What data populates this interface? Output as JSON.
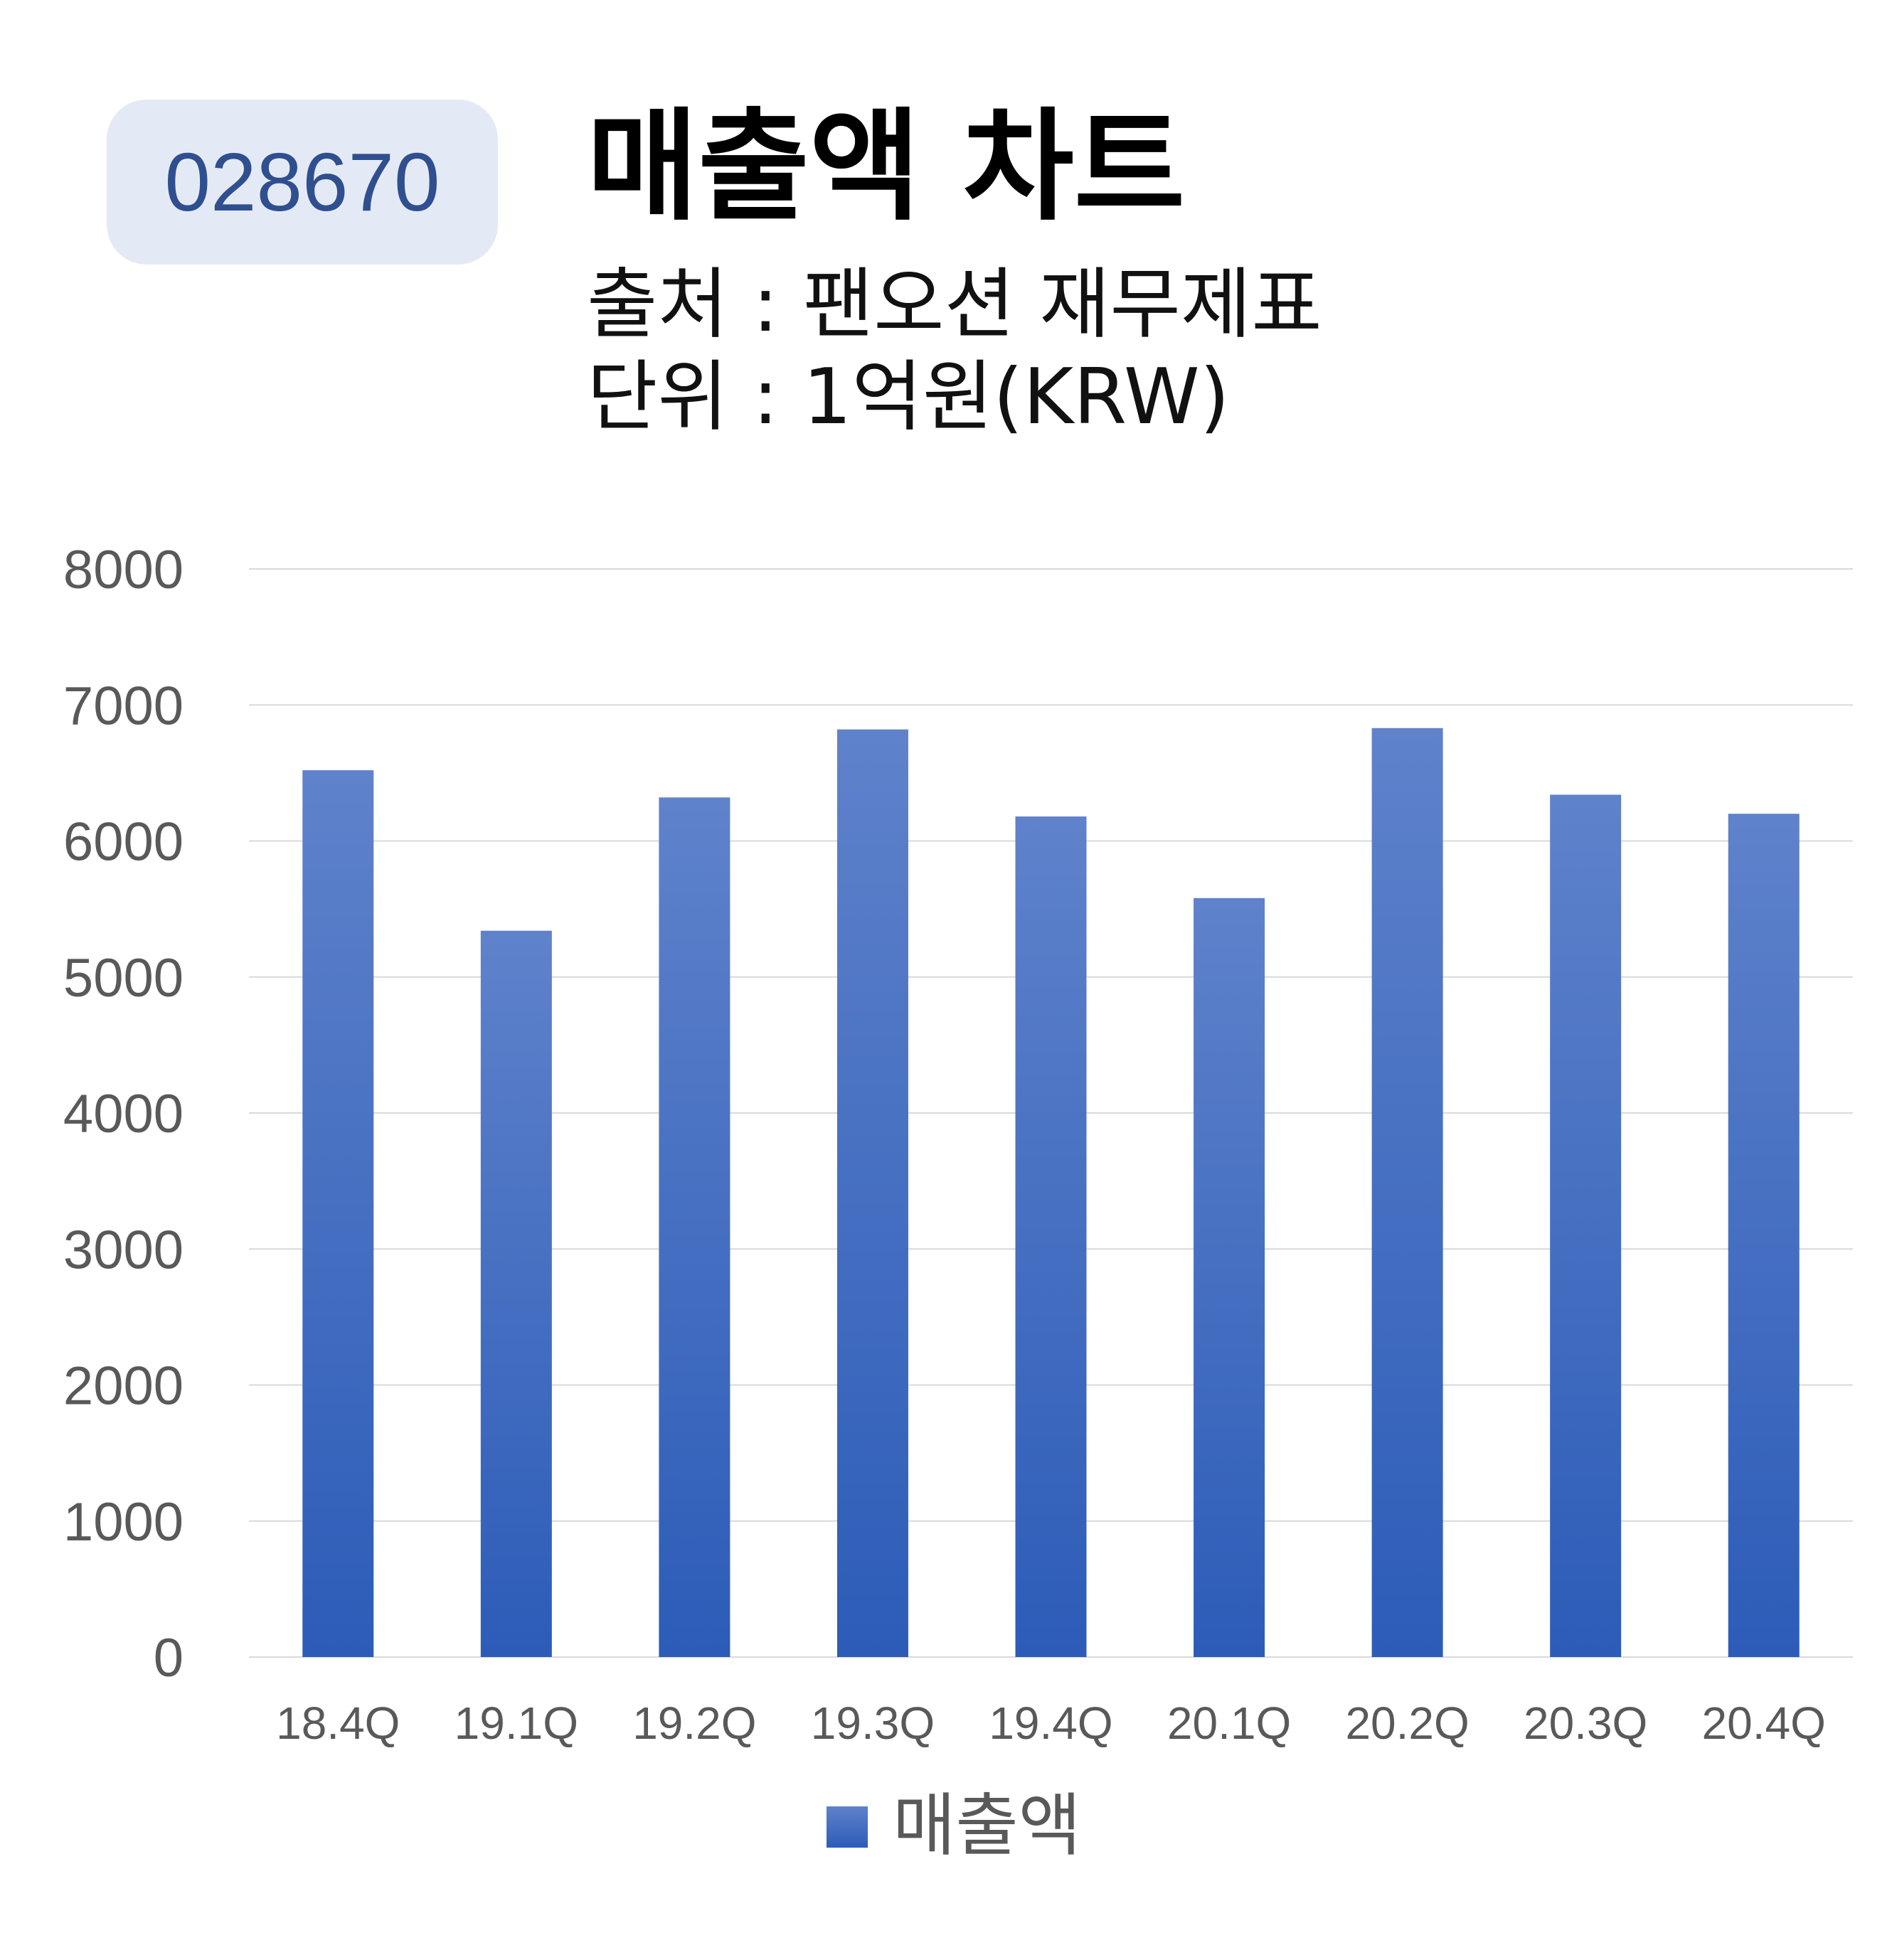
{
  "header": {
    "code": "028670",
    "title": "매출액 차트",
    "source": "출처 : 팬오션 재무제표",
    "unit": "단위 : 1억원(KRW)"
  },
  "colors": {
    "bar_top": "#5f82cb",
    "bar_bottom": "#2c5cb8",
    "grid": "#d9d9d9",
    "badge_bg": "#e4eaf5",
    "badge_text": "#2f4f8f"
  },
  "chart_data": {
    "type": "bar",
    "categories": [
      "18.4Q",
      "19.1Q",
      "19.2Q",
      "19.3Q",
      "19.4Q",
      "20.1Q",
      "20.2Q",
      "20.3Q",
      "20.4Q"
    ],
    "series": [
      {
        "name": "매출액",
        "values": [
          6520,
          5340,
          6320,
          6820,
          6180,
          5580,
          6830,
          6340,
          6200
        ]
      }
    ],
    "ylim": [
      0,
      8000
    ],
    "yticks": [
      0,
      1000,
      2000,
      3000,
      4000,
      5000,
      6000,
      7000,
      8000
    ],
    "grid": true,
    "legend": "bottom"
  }
}
